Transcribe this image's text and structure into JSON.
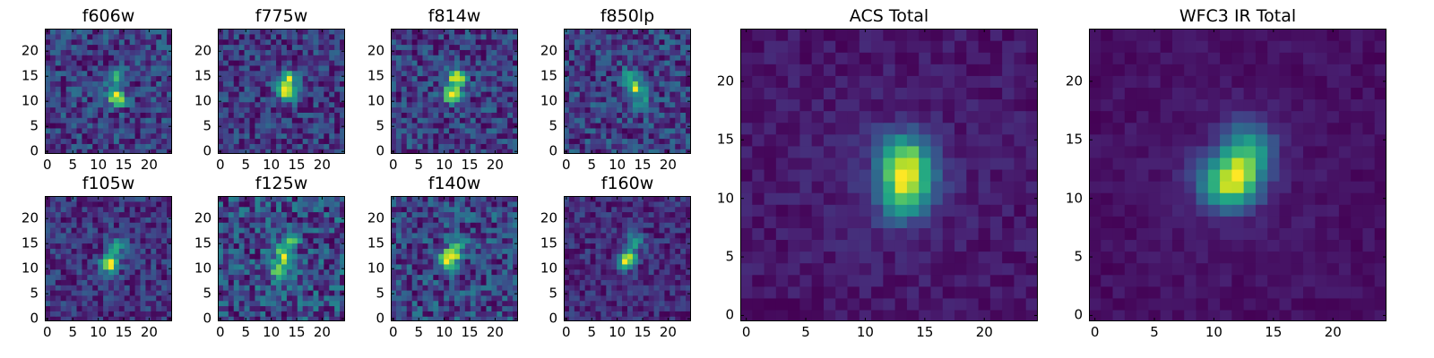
{
  "figure": {
    "description_colormap": "viridis"
  },
  "chart_data": [
    {
      "type": "heatmap",
      "panel": "small",
      "title": "f606w",
      "grid_size": 24,
      "xlim": [
        0,
        24
      ],
      "ylim": [
        0,
        24
      ],
      "xticks": [
        "0",
        "5",
        "10",
        "15",
        "20"
      ],
      "yticks": [
        "0",
        "5",
        "10",
        "15",
        "20"
      ],
      "peaks": [
        [
          13,
          14,
          0.72
        ],
        [
          13,
          10,
          0.8
        ],
        [
          13,
          11,
          0.6
        ]
      ],
      "noise": 0.62,
      "seed": 11
    },
    {
      "type": "heatmap",
      "panel": "small",
      "title": "f775w",
      "grid_size": 24,
      "xlim": [
        0,
        24
      ],
      "ylim": [
        0,
        24
      ],
      "xticks": [
        "0",
        "5",
        "10",
        "15",
        "20"
      ],
      "yticks": [
        "0",
        "5",
        "10",
        "15",
        "20"
      ],
      "peaks": [
        [
          13,
          14,
          0.8
        ],
        [
          13,
          11,
          0.75
        ],
        [
          12,
          12,
          0.55
        ]
      ],
      "noise": 0.45,
      "seed": 23
    },
    {
      "type": "heatmap",
      "panel": "small",
      "title": "f814w",
      "grid_size": 24,
      "xlim": [
        0,
        24
      ],
      "ylim": [
        0,
        24
      ],
      "xticks": [
        "0",
        "5",
        "10",
        "15",
        "20"
      ],
      "yticks": [
        "0",
        "5",
        "10",
        "15",
        "20"
      ],
      "peaks": [
        [
          12,
          14,
          0.9
        ],
        [
          11,
          11,
          0.85
        ]
      ],
      "noise": 0.4,
      "seed": 37
    },
    {
      "type": "heatmap",
      "panel": "small",
      "title": "f850lp",
      "grid_size": 24,
      "xlim": [
        0,
        24
      ],
      "ylim": [
        0,
        24
      ],
      "xticks": [
        "0",
        "5",
        "10",
        "15",
        "20"
      ],
      "yticks": [
        "0",
        "5",
        "10",
        "15",
        "20"
      ],
      "peaks": [
        [
          13,
          12,
          0.85
        ],
        [
          14,
          9,
          0.55
        ],
        [
          12,
          14,
          0.5
        ]
      ],
      "noise": 0.55,
      "seed": 41
    },
    {
      "type": "heatmap",
      "panel": "small",
      "title": "f105w",
      "grid_size": 24,
      "xlim": [
        0,
        24
      ],
      "ylim": [
        0,
        24
      ],
      "xticks": [
        "0",
        "5",
        "10",
        "15",
        "20"
      ],
      "yticks": [
        "0",
        "5",
        "10",
        "15",
        "20"
      ],
      "peaks": [
        [
          12,
          11,
          0.95
        ],
        [
          13,
          14,
          0.7
        ],
        [
          11,
          10,
          0.5
        ]
      ],
      "noise": 0.45,
      "seed": 53
    },
    {
      "type": "heatmap",
      "panel": "small",
      "title": "f125w",
      "grid_size": 24,
      "xlim": [
        0,
        24
      ],
      "ylim": [
        0,
        24
      ],
      "xticks": [
        "0",
        "5",
        "10",
        "15",
        "20"
      ],
      "yticks": [
        "0",
        "5",
        "10",
        "15",
        "20"
      ],
      "peaks": [
        [
          12,
          12,
          0.85
        ],
        [
          13,
          15,
          0.6
        ],
        [
          11,
          9,
          0.5
        ]
      ],
      "noise": 0.5,
      "seed": 67
    },
    {
      "type": "heatmap",
      "panel": "small",
      "title": "f140w",
      "grid_size": 24,
      "xlim": [
        0,
        24
      ],
      "ylim": [
        0,
        24
      ],
      "xticks": [
        "0",
        "5",
        "10",
        "15",
        "20"
      ],
      "yticks": [
        "0",
        "5",
        "10",
        "15",
        "20"
      ],
      "peaks": [
        [
          11,
          12,
          0.8
        ],
        [
          12,
          14,
          0.45
        ],
        [
          10,
          11,
          0.45
        ]
      ],
      "noise": 0.5,
      "seed": 71
    },
    {
      "type": "heatmap",
      "panel": "small",
      "title": "f160w",
      "grid_size": 24,
      "xlim": [
        0,
        24
      ],
      "ylim": [
        0,
        24
      ],
      "xticks": [
        "0",
        "5",
        "10",
        "15",
        "20"
      ],
      "yticks": [
        "0",
        "5",
        "10",
        "15",
        "20"
      ],
      "peaks": [
        [
          11,
          11,
          0.9
        ],
        [
          13,
          15,
          0.7
        ],
        [
          12,
          12,
          0.7
        ]
      ],
      "noise": 0.42,
      "seed": 83
    },
    {
      "type": "heatmap",
      "panel": "large",
      "title": "ACS Total",
      "grid_size": 25,
      "xlim": [
        0,
        24
      ],
      "ylim": [
        0,
        24
      ],
      "xticks": [
        "0",
        "5",
        "10",
        "15",
        "20"
      ],
      "yticks": [
        "0",
        "5",
        "10",
        "15",
        "20"
      ],
      "peaks": [
        [
          13,
          10,
          0.95
        ],
        [
          13,
          14,
          0.85
        ],
        [
          14,
          13,
          0.7
        ],
        [
          13,
          12,
          0.65
        ],
        [
          14,
          11,
          0.6
        ]
      ],
      "noise": 0.3,
      "seed": 97
    },
    {
      "type": "heatmap",
      "panel": "large",
      "title": "WFC3 IR Total",
      "grid_size": 25,
      "xlim": [
        0,
        24
      ],
      "ylim": [
        0,
        24
      ],
      "xticks": [
        "0",
        "5",
        "10",
        "15",
        "20"
      ],
      "yticks": [
        "0",
        "5",
        "10",
        "15",
        "20"
      ],
      "peaks": [
        [
          11,
          11,
          1.0
        ],
        [
          12,
          11,
          0.95
        ],
        [
          13,
          15,
          0.9
        ],
        [
          13,
          13,
          0.8
        ],
        [
          12,
          13,
          0.7
        ],
        [
          10,
          12,
          0.6
        ]
      ],
      "noise": 0.25,
      "seed": 101
    }
  ]
}
